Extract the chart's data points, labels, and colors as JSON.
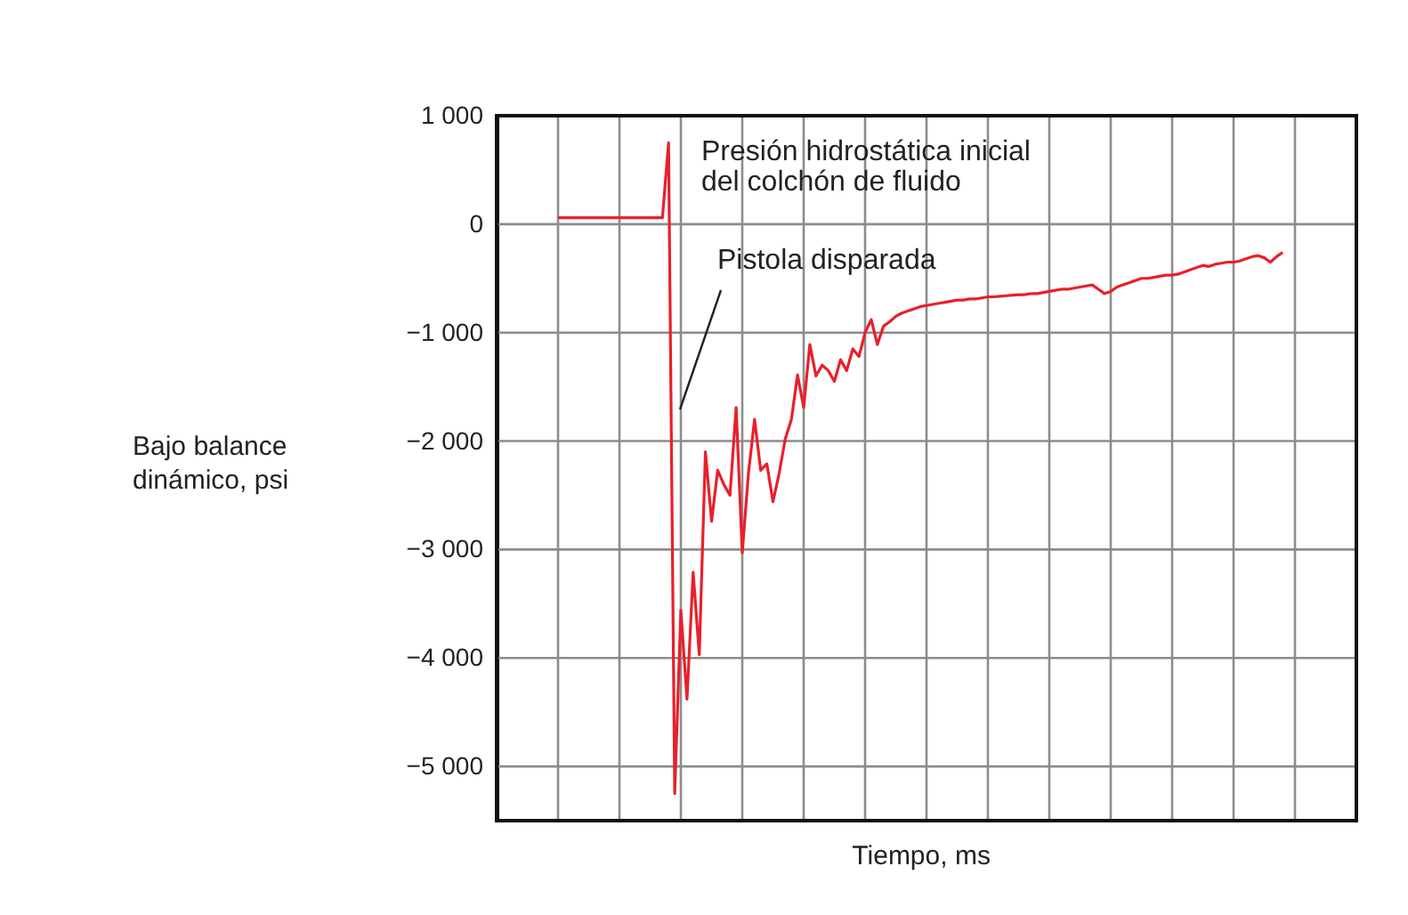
{
  "chart_data": {
    "type": "line",
    "xlabel": "Tiempo, ms",
    "ylabel": "Bajo balance\ndinámico, psi",
    "categories": [
      null,
      null,
      null,
      null,
      null,
      null,
      null,
      null,
      null,
      null,
      null,
      null,
      null,
      null,
      null,
      null,
      null,
      null,
      null,
      null,
      null,
      null,
      null,
      null,
      null,
      null,
      null,
      null,
      null,
      null,
      null,
      null,
      null,
      null,
      null,
      null,
      null,
      null,
      null,
      null,
      null,
      null,
      null,
      null,
      null,
      null,
      null,
      null,
      null,
      null,
      null,
      null,
      null,
      null,
      null,
      null,
      null,
      null,
      null,
      null,
      null,
      null,
      null,
      null,
      null,
      null,
      null,
      null,
      null,
      null,
      null,
      null,
      null,
      null,
      null,
      null,
      null,
      null,
      null,
      null,
      null,
      null,
      null,
      null,
      null,
      null,
      null,
      null,
      null,
      null,
      null,
      null,
      null,
      null,
      null,
      null,
      null,
      null,
      null,
      null,
      null,
      null,
      null,
      null,
      null,
      null,
      null,
      null,
      null,
      null,
      null,
      null,
      null,
      null,
      null,
      null,
      null,
      null,
      null
    ],
    "series": [
      {
        "color": "#e8202a",
        "values": [
          60,
          60,
          60,
          60,
          60,
          60,
          60,
          60,
          60,
          60,
          60,
          60,
          60,
          60,
          60,
          60,
          60,
          60,
          750,
          -5250,
          -3560,
          -4380,
          -3210,
          -3970,
          -2100,
          -2740,
          -2270,
          -2400,
          -2500,
          -1690,
          -3030,
          -2300,
          -1800,
          -2270,
          -2210,
          -2560,
          -2300,
          -1980,
          -1800,
          -1390,
          -1690,
          -1110,
          -1400,
          -1300,
          -1350,
          -1450,
          -1250,
          -1350,
          -1150,
          -1220,
          -1000,
          -880,
          -1110,
          -940,
          -900,
          -850,
          -820,
          -800,
          -780,
          -760,
          -750,
          -740,
          -730,
          -720,
          -710,
          -700,
          -700,
          -690,
          -690,
          -680,
          -670,
          -670,
          -665,
          -660,
          -655,
          -650,
          -650,
          -640,
          -640,
          -630,
          -620,
          -610,
          -600,
          -600,
          -590,
          -580,
          -570,
          -560,
          -600,
          -640,
          -620,
          -580,
          -560,
          -540,
          -520,
          -500,
          -500,
          -490,
          -480,
          -470,
          -470,
          -460,
          -440,
          -420,
          -400,
          -380,
          -390,
          -370,
          -360,
          -350,
          -350,
          -340,
          -320,
          -300,
          -290,
          -310,
          -350,
          -300,
          -260
        ]
      }
    ],
    "ylim": [
      -5500,
      1000
    ],
    "yticks": [
      {
        "value": 1000,
        "label": "1 000"
      },
      0,
      {
        "value": -1000,
        "label": "−1 000"
      },
      {
        "value": -2000,
        "label": "−2 000"
      },
      {
        "value": -3000,
        "label": "−3 000"
      },
      {
        "value": -4000,
        "label": "−4 000"
      },
      {
        "value": -5000,
        "label": "−5 000"
      }
    ],
    "tick_labels": "y",
    "grid": true,
    "marker": "none",
    "line_style": "solid",
    "annotations": [
      "Presión hidrostática inicial\ndel colchón de fluido",
      "Pistola disparada"
    ]
  }
}
